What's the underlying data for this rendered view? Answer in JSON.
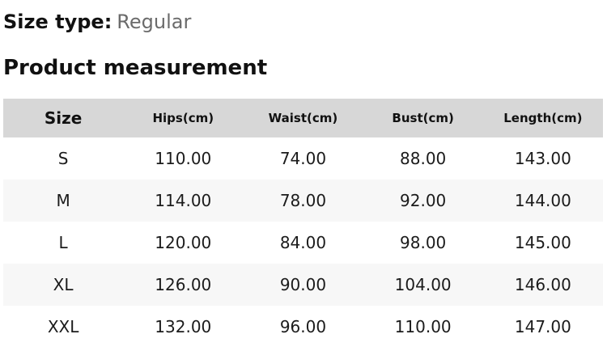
{
  "header": {
    "size_type_label": "Size type:",
    "size_type_value": "Regular",
    "section_title": "Product measurement"
  },
  "table": {
    "columns": [
      "Size",
      "Hips(cm)",
      "Waist(cm)",
      "Bust(cm)",
      "Length(cm)"
    ],
    "rows": [
      {
        "cells": [
          "S",
          "110.00",
          "74.00",
          "88.00",
          "143.00"
        ]
      },
      {
        "cells": [
          "M",
          "114.00",
          "78.00",
          "92.00",
          "144.00"
        ]
      },
      {
        "cells": [
          "L",
          "120.00",
          "84.00",
          "98.00",
          "145.00"
        ]
      },
      {
        "cells": [
          "XL",
          "126.00",
          "90.00",
          "104.00",
          "146.00"
        ]
      },
      {
        "cells": [
          "XXL",
          "132.00",
          "96.00",
          "110.00",
          "147.00"
        ]
      }
    ]
  },
  "colors": {
    "header_row_bg": "#d7d7d7",
    "zebra_stripe_bg": "#f7f7f7",
    "heading_text": "#111111",
    "body_text": "#1b1b1b",
    "muted_text": "#6b6b6b"
  }
}
